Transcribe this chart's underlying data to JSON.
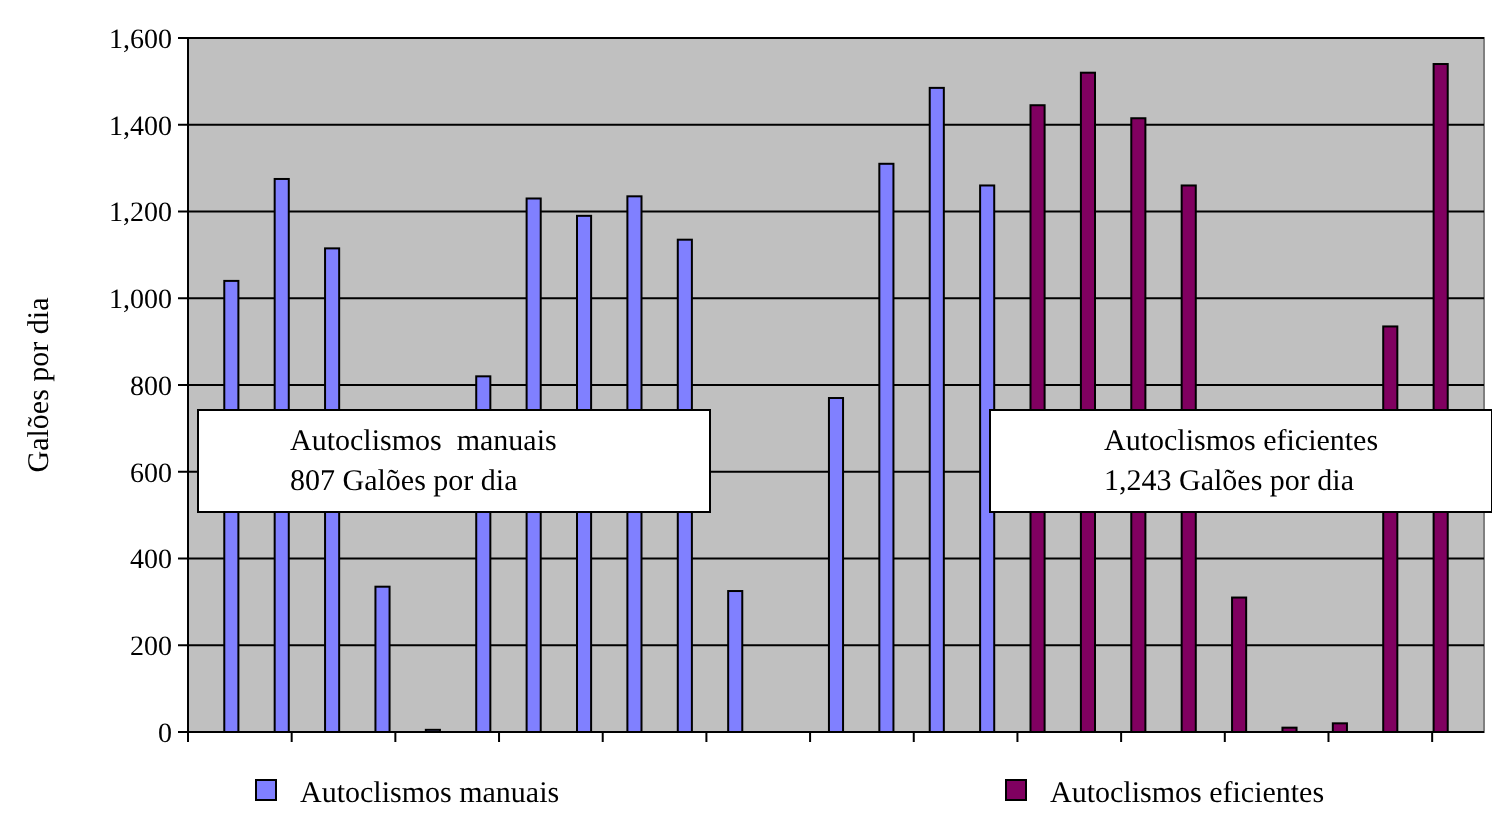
{
  "chart_data": {
    "type": "bar",
    "ylabel": "Galões por dia",
    "categories": [
      null,
      null,
      null,
      null,
      null,
      null,
      null,
      null,
      null,
      null,
      null,
      null,
      null,
      null,
      null,
      null,
      null,
      null,
      null,
      null,
      null,
      null,
      null,
      null,
      null
    ],
    "series": [
      {
        "name": "Autoclismos manuais",
        "color": "#8080ff",
        "values": [
          1040,
          1275,
          1115,
          335,
          5,
          820,
          1230,
          1190,
          1235,
          1135,
          325,
          null,
          770,
          1310,
          1485,
          1260,
          null,
          null,
          null,
          null,
          null,
          null,
          null,
          null,
          null
        ]
      },
      {
        "name": "Autoclismos eficientes",
        "color": "#800060",
        "values": [
          null,
          null,
          null,
          null,
          null,
          null,
          null,
          null,
          null,
          null,
          null,
          null,
          null,
          null,
          null,
          null,
          1445,
          1520,
          1415,
          1260,
          310,
          10,
          20,
          935,
          1540
        ]
      }
    ],
    "ylim": [
      0,
      1600
    ],
    "yticks": [
      {
        "value": 0,
        "label": "0"
      },
      {
        "value": 200,
        "label": "200"
      },
      {
        "value": 400,
        "label": "400"
      },
      {
        "value": 600,
        "label": "600"
      },
      {
        "value": 800,
        "label": "800"
      },
      {
        "value": 1000,
        "label": "1,000"
      },
      {
        "value": 1200,
        "label": "1,200"
      },
      {
        "value": 1400,
        "label": "1,400"
      },
      {
        "value": 1600,
        "label": "1,600"
      }
    ],
    "grid": "y",
    "legend": "bottom",
    "annotations": [
      "Autoclismos  manuais\n807 Galões por dia",
      "Autoclismos eficientes\n1,243 Galões por dia"
    ]
  }
}
